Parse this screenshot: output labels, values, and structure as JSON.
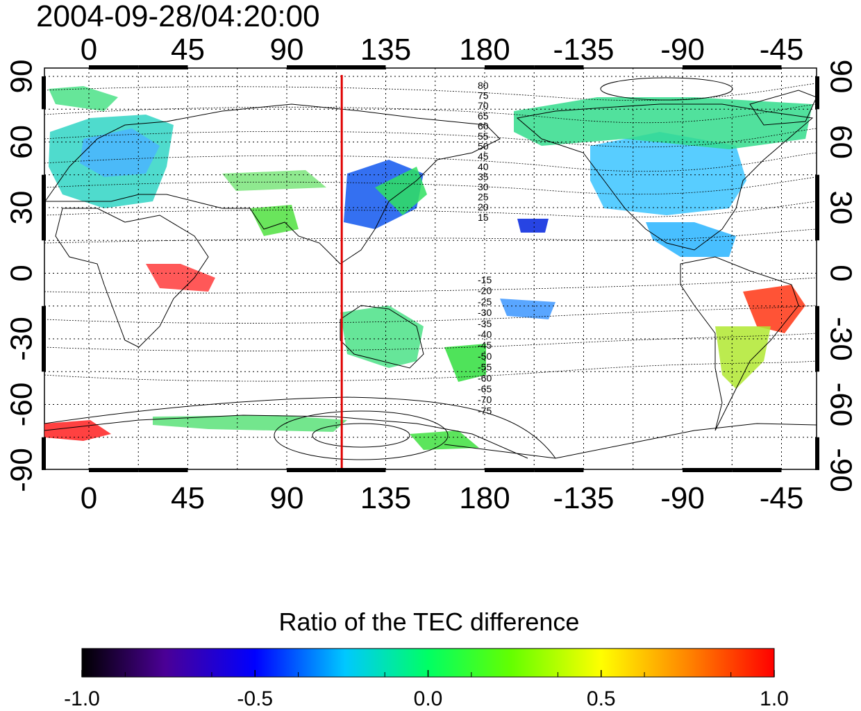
{
  "timestamp": "2004-09-28/04:20:00",
  "lon_ticks": [
    "0",
    "45",
    "90",
    "135",
    "180",
    "-135",
    "-90",
    "-45"
  ],
  "lat_ticks": [
    "90",
    "60",
    "30",
    "0",
    "-30",
    "-60",
    "-90"
  ],
  "contour_labels_north": [
    "80",
    "75",
    "70",
    "65",
    "60",
    "55",
    "50",
    "45",
    "40",
    "35",
    "30",
    "25",
    "20",
    "15"
  ],
  "contour_labels_south": [
    "-15",
    "-20",
    "-25",
    "-30",
    "-35",
    "-40",
    "-45",
    "-50",
    "-55",
    "-60",
    "-65",
    "-70",
    "-75"
  ],
  "meridian_marker": {
    "longitude": 115,
    "color": "#e00000"
  },
  "colorbar": {
    "title": "Ratio of the TEC difference",
    "tick_labels": [
      "-1.0",
      "-0.5",
      "0.0",
      "0.5",
      "1.0"
    ],
    "range": [
      -1.0,
      1.0
    ],
    "colors": [
      "#000000",
      "#5a00a0",
      "#0000ff",
      "#00ffff",
      "#00ff00",
      "#ffff00",
      "#ff0000"
    ]
  }
}
